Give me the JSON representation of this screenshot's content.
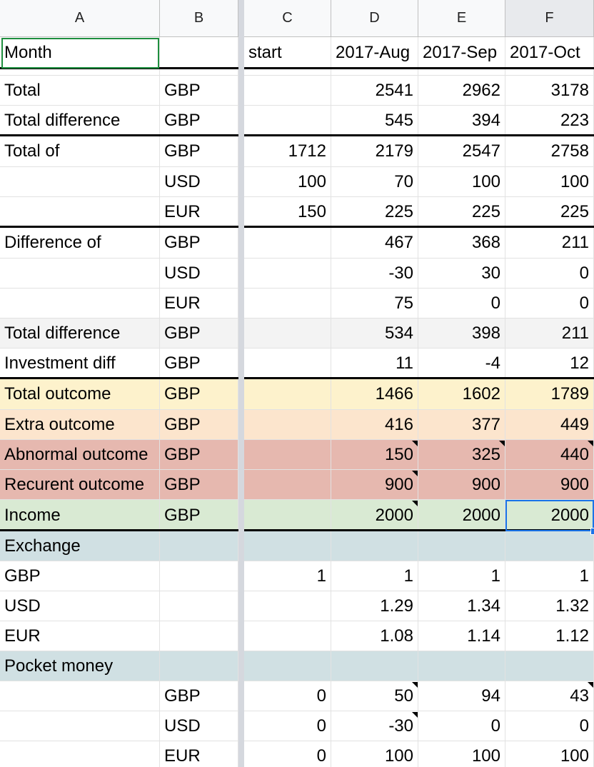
{
  "columns": [
    "A",
    "B",
    "C",
    "D",
    "E",
    "F"
  ],
  "selected_column": "F",
  "rows": [
    {
      "cells": [
        "Month",
        "",
        "start",
        "2017-Aug",
        "2017-Sep",
        "2017-Oct"
      ]
    },
    {
      "cells": [
        "",
        "",
        "",
        "",
        "",
        ""
      ]
    },
    {
      "cells": [
        "Total",
        "GBP",
        "",
        "2541",
        "2962",
        "3178"
      ]
    },
    {
      "cells": [
        "Total difference",
        "GBP",
        "",
        "545",
        "394",
        "223"
      ]
    },
    {
      "cells": [
        "Total of",
        "GBP",
        "1712",
        "2179",
        "2547",
        "2758"
      ]
    },
    {
      "cells": [
        "",
        "USD",
        "100",
        "70",
        "100",
        "100"
      ]
    },
    {
      "cells": [
        "",
        "EUR",
        "150",
        "225",
        "225",
        "225"
      ]
    },
    {
      "cells": [
        "Difference of",
        "GBP",
        "",
        "467",
        "368",
        "211"
      ]
    },
    {
      "cells": [
        "",
        "USD",
        "",
        "-30",
        "30",
        "0"
      ]
    },
    {
      "cells": [
        "",
        "EUR",
        "",
        "75",
        "0",
        "0"
      ]
    },
    {
      "cells": [
        "Total difference",
        "GBP",
        "",
        "534",
        "398",
        "211"
      ]
    },
    {
      "cells": [
        "Investment diff",
        "GBP",
        "",
        "11",
        "-4",
        "12"
      ]
    },
    {
      "cells": [
        "Total outcome",
        "GBP",
        "",
        "1466",
        "1602",
        "1789"
      ]
    },
    {
      "cells": [
        "Extra outcome",
        "GBP",
        "",
        "416",
        "377",
        "449"
      ]
    },
    {
      "cells": [
        "Abnormal outcome",
        "GBP",
        "",
        "150",
        "325",
        "440"
      ]
    },
    {
      "cells": [
        "Recurent outcome",
        "GBP",
        "",
        "900",
        "900",
        "900"
      ]
    },
    {
      "cells": [
        "Income",
        "GBP",
        "",
        "2000",
        "2000",
        "2000"
      ]
    },
    {
      "cells": [
        "Exchange",
        "",
        "",
        "",
        "",
        ""
      ]
    },
    {
      "cells": [
        "GBP",
        "",
        "1",
        "1",
        "1",
        "1"
      ]
    },
    {
      "cells": [
        "USD",
        "",
        "",
        "1.29",
        "1.34",
        "1.32"
      ]
    },
    {
      "cells": [
        "EUR",
        "",
        "",
        "1.08",
        "1.14",
        "1.12"
      ]
    },
    {
      "cells": [
        "Pocket money",
        "",
        "",
        "",
        "",
        ""
      ]
    },
    {
      "cells": [
        "",
        "GBP",
        "0",
        "50",
        "94",
        "43"
      ]
    },
    {
      "cells": [
        "",
        "USD",
        "0",
        "-30",
        "0",
        "0"
      ]
    },
    {
      "cells": [
        "",
        "EUR",
        "0",
        "100",
        "100",
        "100"
      ]
    }
  ],
  "colors": {
    "total_outcome": "#fdf2cc",
    "extra_outcome": "#fce5cd",
    "abnormal_outcome": "#e6b8af",
    "recurent_outcome": "#e6b8af",
    "income": "#d9ead3",
    "section_header": "#d0e0e3",
    "row_highlight": "#f3f3f3",
    "selection": "#1a73e8",
    "a1_border": "#1e8e3e"
  },
  "row_colors": {
    "10": "row_highlight",
    "12": "total_outcome",
    "13": "extra_outcome",
    "14": "abnormal_outcome",
    "15": "recurent_outcome",
    "16": "income",
    "17": "section_header",
    "21": "section_header"
  },
  "notes": [
    {
      "row": 14,
      "col": 3
    },
    {
      "row": 14,
      "col": 4
    },
    {
      "row": 14,
      "col": 5
    },
    {
      "row": 15,
      "col": 3
    },
    {
      "row": 16,
      "col": 3
    },
    {
      "row": 22,
      "col": 3
    },
    {
      "row": 22,
      "col": 5
    },
    {
      "row": 23,
      "col": 3
    }
  ],
  "selected_cell": {
    "row": 16,
    "col": 5
  }
}
